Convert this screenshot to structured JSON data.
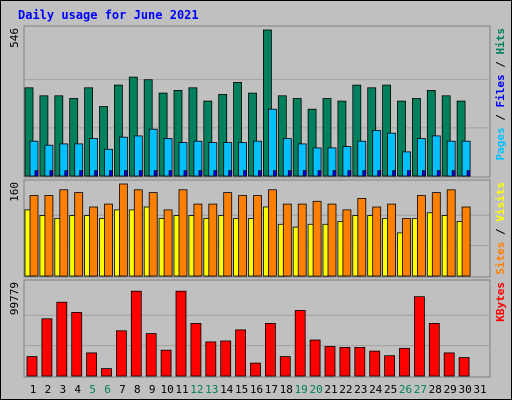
{
  "title": "Daily usage for June 2021",
  "colors": {
    "title": "#0000ff",
    "hits": "#00805c",
    "files": "#0000ff",
    "pages": "#00c0ff",
    "sites": "#ff8000",
    "visits": "#ffff00",
    "kbytes": "#ff0000",
    "weekend_day": "#00805c",
    "weekday": "#000000"
  },
  "legend": {
    "hits": "Hits",
    "files": "Files",
    "pages": "Pages",
    "sites": "Sites",
    "visits": "Visits",
    "kbytes": "KBytes",
    "sep": "/"
  },
  "chart_data": [
    {
      "type": "bar",
      "panel": "hits-files-pages",
      "ymax_label": "546",
      "ylim": [
        0,
        546
      ],
      "categories": [
        "1",
        "2",
        "3",
        "4",
        "5",
        "6",
        "7",
        "8",
        "9",
        "10",
        "11",
        "12",
        "13",
        "14",
        "15",
        "16",
        "17",
        "18",
        "19",
        "20",
        "21",
        "22",
        "23",
        "24",
        "25",
        "26",
        "27",
        "28",
        "29",
        "30",
        "31"
      ],
      "series": [
        {
          "name": "Hits",
          "values": [
            330,
            300,
            300,
            290,
            330,
            260,
            340,
            370,
            360,
            310,
            320,
            330,
            280,
            305,
            350,
            310,
            546,
            300,
            290,
            250,
            290,
            280,
            340,
            330,
            340,
            280,
            290,
            320,
            300,
            280,
            0
          ]
        },
        {
          "name": "Files",
          "values": [
            20,
            20,
            20,
            20,
            20,
            20,
            20,
            20,
            20,
            20,
            20,
            20,
            20,
            20,
            20,
            20,
            20,
            20,
            20,
            20,
            20,
            20,
            20,
            20,
            20,
            20,
            20,
            20,
            20,
            20,
            0
          ]
        },
        {
          "name": "Pages",
          "values": [
            130,
            115,
            120,
            120,
            140,
            100,
            145,
            150,
            175,
            140,
            125,
            130,
            125,
            125,
            125,
            130,
            250,
            140,
            120,
            105,
            105,
            110,
            130,
            170,
            160,
            90,
            140,
            150,
            130,
            130,
            0
          ]
        }
      ]
    },
    {
      "type": "bar",
      "panel": "visits-sites",
      "ymax_label": "160",
      "ylim": [
        0,
        160
      ],
      "categories": [
        "1",
        "2",
        "3",
        "4",
        "5",
        "6",
        "7",
        "8",
        "9",
        "10",
        "11",
        "12",
        "13",
        "14",
        "15",
        "16",
        "17",
        "18",
        "19",
        "20",
        "21",
        "22",
        "23",
        "24",
        "25",
        "26",
        "27",
        "28",
        "29",
        "30",
        "31"
      ],
      "series": [
        {
          "name": "Visits",
          "values": [
            115,
            105,
            100,
            105,
            105,
            100,
            115,
            115,
            120,
            100,
            105,
            105,
            100,
            105,
            100,
            100,
            120,
            90,
            85,
            90,
            90,
            95,
            105,
            105,
            100,
            75,
            100,
            110,
            105,
            95,
            0
          ]
        },
        {
          "name": "Sites",
          "values": [
            140,
            140,
            150,
            145,
            120,
            125,
            160,
            150,
            145,
            115,
            150,
            125,
            125,
            145,
            140,
            140,
            150,
            125,
            125,
            130,
            125,
            115,
            135,
            120,
            125,
            100,
            140,
            145,
            150,
            120,
            0
          ]
        }
      ]
    },
    {
      "type": "bar",
      "panel": "kbytes",
      "ymax_label": "99779",
      "ylim": [
        0,
        99779
      ],
      "categories": [
        "1",
        "2",
        "3",
        "4",
        "5",
        "6",
        "7",
        "8",
        "9",
        "10",
        "11",
        "12",
        "13",
        "14",
        "15",
        "16",
        "17",
        "18",
        "19",
        "20",
        "21",
        "22",
        "23",
        "24",
        "25",
        "26",
        "27",
        "28",
        "29",
        "30",
        "31"
      ],
      "series": [
        {
          "name": "KBytes",
          "values": [
            21000,
            62000,
            80000,
            69000,
            25000,
            8000,
            49000,
            92000,
            46000,
            28000,
            92000,
            57000,
            37000,
            38000,
            50000,
            14000,
            57000,
            21000,
            71000,
            39000,
            32000,
            31000,
            31000,
            27000,
            22000,
            30000,
            86000,
            57000,
            25000,
            20000,
            0
          ]
        }
      ]
    }
  ],
  "x_labels": [
    {
      "text": "1",
      "weekend": false
    },
    {
      "text": "2",
      "weekend": false
    },
    {
      "text": "3",
      "weekend": false
    },
    {
      "text": "4",
      "weekend": false
    },
    {
      "text": "5",
      "weekend": true
    },
    {
      "text": "6",
      "weekend": true
    },
    {
      "text": "7",
      "weekend": false
    },
    {
      "text": "8",
      "weekend": false
    },
    {
      "text": "9",
      "weekend": false
    },
    {
      "text": "10",
      "weekend": false
    },
    {
      "text": "11",
      "weekend": false
    },
    {
      "text": "12",
      "weekend": true
    },
    {
      "text": "13",
      "weekend": true
    },
    {
      "text": "14",
      "weekend": false
    },
    {
      "text": "15",
      "weekend": false
    },
    {
      "text": "16",
      "weekend": false
    },
    {
      "text": "17",
      "weekend": false
    },
    {
      "text": "18",
      "weekend": false
    },
    {
      "text": "19",
      "weekend": true
    },
    {
      "text": "20",
      "weekend": true
    },
    {
      "text": "21",
      "weekend": false
    },
    {
      "text": "22",
      "weekend": false
    },
    {
      "text": "23",
      "weekend": false
    },
    {
      "text": "24",
      "weekend": false
    },
    {
      "text": "25",
      "weekend": false
    },
    {
      "text": "26",
      "weekend": true
    },
    {
      "text": "27",
      "weekend": true
    },
    {
      "text": "28",
      "weekend": false
    },
    {
      "text": "29",
      "weekend": false
    },
    {
      "text": "30",
      "weekend": false
    },
    {
      "text": "31",
      "weekend": false
    }
  ]
}
